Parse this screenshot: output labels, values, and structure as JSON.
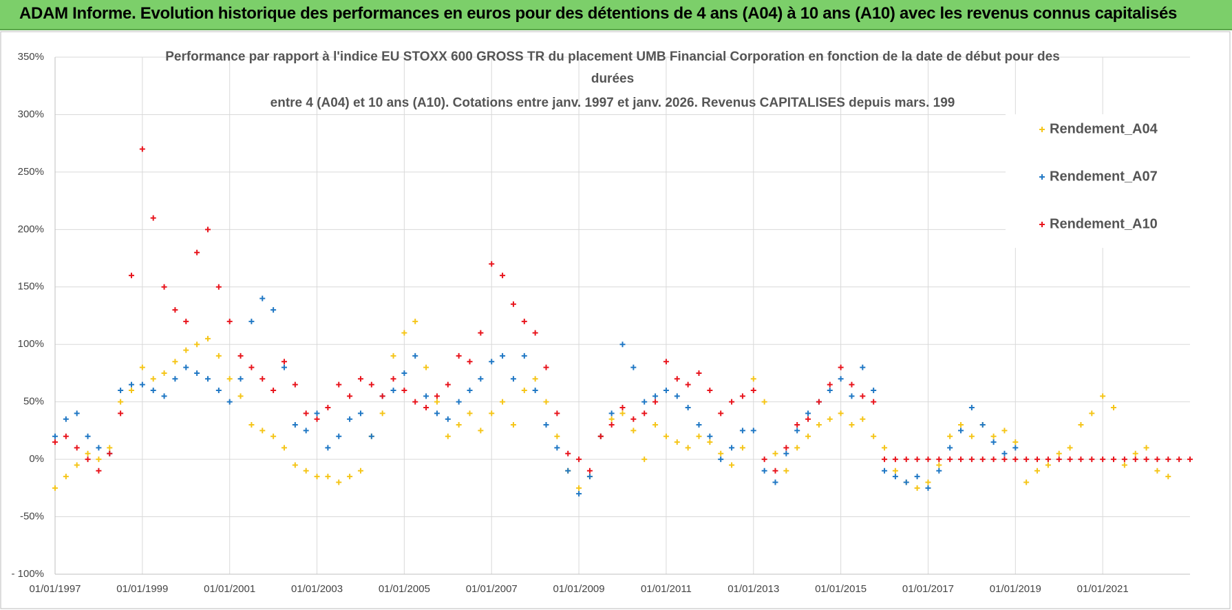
{
  "header": {
    "title": "ADAM Informe. Evolution historique des performances en euros pour des détentions de 4 ans (A04) à 10 ans (A10) avec les revenus connus capitalisés"
  },
  "chart_data": {
    "type": "scatter",
    "subtitle": [
      "Performance par rapport à l'indice EU STOXX 600 GROSS TR  du placement UMB Financial Corporation en fonction de la date de début pour des",
      "durées",
      "entre 4 (A04) et 10 ans (A10). Cotations entre janv. 1997 et janv. 2026. Revenus CAPITALISES depuis mars. 199"
    ],
    "x": [
      1997,
      1997.25,
      1997.5,
      1997.75,
      1998,
      1998.25,
      1998.5,
      1998.75,
      1999,
      1999.25,
      1999.5,
      1999.75,
      2000,
      2000.25,
      2000.5,
      2000.75,
      2001,
      2001.25,
      2001.5,
      2001.75,
      2002,
      2002.25,
      2002.5,
      2002.75,
      2003,
      2003.25,
      2003.5,
      2003.75,
      2004,
      2004.25,
      2004.5,
      2004.75,
      2005,
      2005.25,
      2005.5,
      2005.75,
      2006,
      2006.25,
      2006.5,
      2006.75,
      2007,
      2007.25,
      2007.5,
      2007.75,
      2008,
      2008.25,
      2008.5,
      2008.75,
      2009,
      2009.25,
      2009.5,
      2009.75,
      2010,
      2010.25,
      2010.5,
      2010.75,
      2011,
      2011.25,
      2011.5,
      2011.75,
      2012,
      2012.25,
      2012.5,
      2012.75,
      2013,
      2013.25,
      2013.5,
      2013.75,
      2014,
      2014.25,
      2014.5,
      2014.75,
      2015,
      2015.25,
      2015.5,
      2015.75,
      2016,
      2016.25,
      2016.5,
      2016.75,
      2017,
      2017.25,
      2017.5,
      2017.75,
      2018,
      2018.25,
      2018.5,
      2018.75,
      2019,
      2019.25,
      2019.5,
      2019.75,
      2020,
      2020.25,
      2020.5,
      2020.75,
      2021,
      2021.25,
      2021.5,
      2021.75,
      2022,
      2022.25,
      2022.5,
      2022.75,
      2023
    ],
    "series": [
      {
        "name": "Rendement_A04",
        "color": "#f5c518",
        "values": [
          -25,
          -15,
          -5,
          5,
          0,
          10,
          50,
          60,
          80,
          70,
          75,
          85,
          95,
          100,
          105,
          90,
          70,
          55,
          30,
          25,
          20,
          10,
          -5,
          -10,
          -15,
          -15,
          -20,
          -15,
          -10,
          20,
          40,
          90,
          110,
          120,
          80,
          50,
          20,
          30,
          40,
          25,
          40,
          50,
          30,
          60,
          70,
          50,
          20,
          -10,
          -25,
          -15,
          20,
          35,
          40,
          25,
          0,
          30,
          20,
          15,
          10,
          20,
          15,
          5,
          -5,
          10,
          70,
          50,
          5,
          -10,
          10,
          20,
          30,
          35,
          40,
          30,
          35,
          20,
          10,
          -10,
          -20,
          -25,
          -20,
          -5,
          20,
          30,
          20,
          30,
          20,
          25,
          15,
          -20,
          -10,
          -5,
          5,
          10,
          30,
          40,
          55,
          45,
          -5,
          5,
          10,
          -10,
          -15,
          null,
          null
        ]
      },
      {
        "name": "Rendement_A07",
        "color": "#1f77c4",
        "values": [
          20,
          35,
          40,
          20,
          10,
          5,
          60,
          65,
          65,
          60,
          55,
          70,
          80,
          75,
          70,
          60,
          50,
          70,
          120,
          140,
          130,
          80,
          30,
          25,
          40,
          10,
          20,
          35,
          40,
          20,
          55,
          60,
          75,
          90,
          55,
          40,
          35,
          50,
          60,
          70,
          85,
          90,
          70,
          90,
          60,
          30,
          10,
          -10,
          -30,
          -15,
          20,
          40,
          100,
          80,
          50,
          55,
          60,
          55,
          45,
          30,
          20,
          0,
          10,
          25,
          25,
          -10,
          -20,
          5,
          25,
          40,
          50,
          60,
          70,
          55,
          80,
          60,
          -10,
          -15,
          -20,
          -15,
          -25,
          -10,
          10,
          25,
          45,
          30,
          15,
          5,
          10,
          null,
          null,
          null,
          null,
          null,
          null,
          null,
          null,
          null,
          null,
          null,
          null,
          null,
          null,
          null,
          null
        ]
      },
      {
        "name": "Rendement_A10",
        "color": "#e8141c",
        "values": [
          15,
          20,
          10,
          0,
          -10,
          5,
          40,
          160,
          270,
          210,
          150,
          130,
          120,
          180,
          200,
          150,
          120,
          90,
          80,
          70,
          60,
          85,
          65,
          40,
          35,
          45,
          65,
          55,
          70,
          65,
          55,
          70,
          60,
          50,
          45,
          55,
          65,
          90,
          85,
          110,
          170,
          160,
          135,
          120,
          110,
          80,
          40,
          5,
          0,
          -10,
          20,
          30,
          45,
          35,
          40,
          50,
          85,
          70,
          65,
          75,
          60,
          40,
          50,
          55,
          60,
          0,
          -10,
          10,
          30,
          35,
          50,
          65,
          80,
          65,
          55,
          50,
          0,
          0,
          0,
          0,
          0,
          0,
          0,
          0,
          0,
          0,
          0,
          0,
          0,
          0,
          0,
          0,
          0,
          0,
          0,
          0,
          0,
          0,
          0,
          0,
          0,
          0,
          0,
          0,
          0
        ]
      }
    ],
    "xlim": [
      1997,
      2023
    ],
    "xticks": [
      {
        "value": 1997,
        "label": "01/01/1997"
      },
      {
        "value": 1999,
        "label": "01/01/1999"
      },
      {
        "value": 2001,
        "label": "01/01/2001"
      },
      {
        "value": 2003,
        "label": "01/01/2003"
      },
      {
        "value": 2005,
        "label": "01/01/2005"
      },
      {
        "value": 2007,
        "label": "01/01/2007"
      },
      {
        "value": 2009,
        "label": "01/01/2009"
      },
      {
        "value": 2011,
        "label": "01/01/2011"
      },
      {
        "value": 2013,
        "label": "01/01/2013"
      },
      {
        "value": 2015,
        "label": "01/01/2015"
      },
      {
        "value": 2017,
        "label": "01/01/2017"
      },
      {
        "value": 2019,
        "label": "01/01/2019"
      },
      {
        "value": 2021,
        "label": "01/01/2021"
      }
    ],
    "ylim": [
      -100,
      350
    ],
    "yticks": [
      {
        "value": -100,
        "label": "- 100%"
      },
      {
        "value": -50,
        "label": "-50%"
      },
      {
        "value": 0,
        "label": "0%"
      },
      {
        "value": 50,
        "label": "50%"
      },
      {
        "value": 100,
        "label": "100%"
      },
      {
        "value": 150,
        "label": "150%"
      },
      {
        "value": 200,
        "label": "200%"
      },
      {
        "value": 250,
        "label": "250%"
      },
      {
        "value": 300,
        "label": "300%"
      },
      {
        "value": 350,
        "label": "350%"
      }
    ],
    "grid": true,
    "legend": "upper right"
  }
}
